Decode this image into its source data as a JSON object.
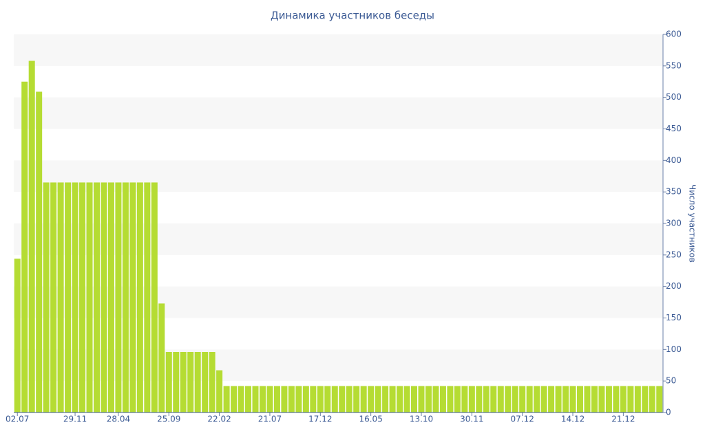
{
  "chart_data": {
    "type": "bar",
    "title": "Динамика участников беседы",
    "y_label": "Число участников",
    "categories": [
      "02.07",
      null,
      null,
      null,
      null,
      null,
      null,
      null,
      "29.11",
      null,
      null,
      null,
      null,
      null,
      "28.04",
      null,
      null,
      null,
      null,
      null,
      null,
      "25.09",
      null,
      null,
      null,
      null,
      null,
      null,
      "22.02",
      null,
      null,
      null,
      null,
      null,
      null,
      "21.07",
      null,
      null,
      null,
      null,
      null,
      null,
      "17.12",
      null,
      null,
      null,
      null,
      null,
      null,
      "16.05",
      null,
      null,
      null,
      null,
      null,
      null,
      "13.10",
      null,
      null,
      null,
      null,
      null,
      null,
      "30.11",
      null,
      null,
      null,
      null,
      null,
      null,
      "07.12",
      null,
      null,
      null,
      null,
      null,
      null,
      "14.12",
      null,
      null,
      null,
      null,
      null,
      null,
      "21.12",
      null,
      null,
      null,
      null,
      null
    ],
    "values": [
      244,
      525,
      558,
      509,
      365,
      365,
      365,
      365,
      365,
      365,
      365,
      365,
      365,
      365,
      365,
      365,
      365,
      365,
      365,
      365,
      173,
      96,
      96,
      96,
      96,
      96,
      96,
      96,
      67,
      42,
      42,
      42,
      42,
      42,
      42,
      42,
      42,
      42,
      42,
      42,
      42,
      42,
      42,
      42,
      42,
      42,
      42,
      42,
      42,
      42,
      42,
      42,
      42,
      42,
      42,
      42,
      42,
      42,
      42,
      42,
      42,
      42,
      42,
      42,
      42,
      42,
      42,
      42,
      42,
      42,
      42,
      42,
      42,
      42,
      42,
      42,
      42,
      42,
      42,
      42,
      42,
      42,
      42,
      42,
      42,
      42,
      42,
      42,
      42,
      42
    ],
    "color": "#b5dc33",
    "ylim": [
      0,
      600
    ],
    "yticks": [
      0,
      50,
      100,
      150,
      200,
      250,
      300,
      350,
      400,
      450,
      500,
      550,
      600
    ],
    "grid": true
  }
}
